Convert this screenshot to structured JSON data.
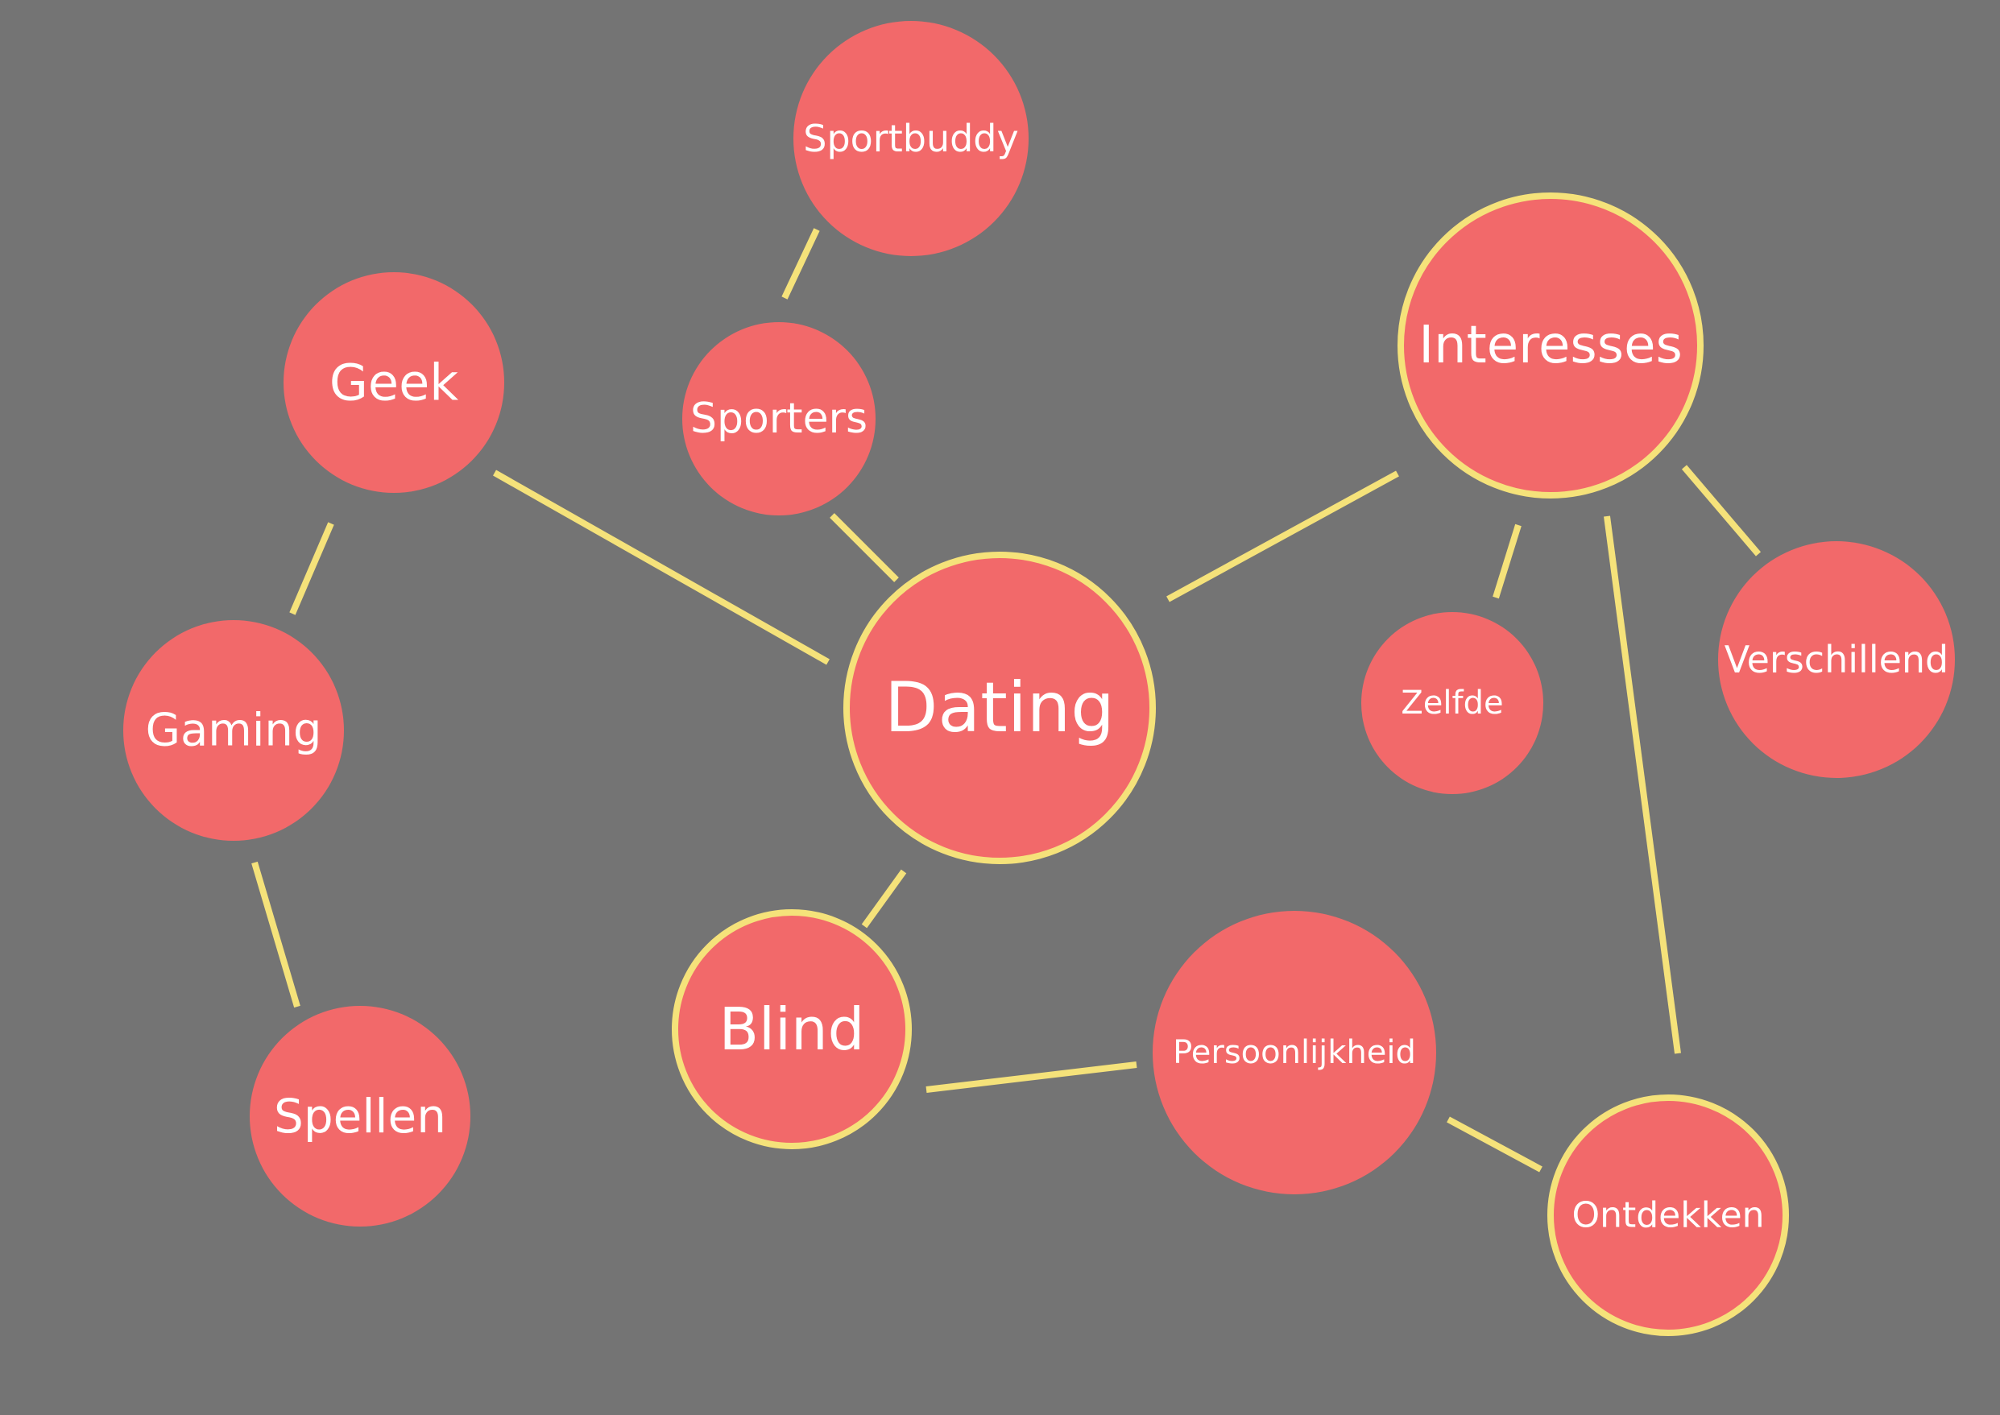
{
  "colors": {
    "background": "#747474",
    "node_fill": "#f2696a",
    "accent_line": "#f5e27a",
    "text": "#ffffff"
  },
  "nodes": {
    "sportbuddy": {
      "label": "Sportbuddy",
      "highlighted": false
    },
    "geek": {
      "label": "Geek",
      "highlighted": false
    },
    "sporters": {
      "label": "Sporters",
      "highlighted": false
    },
    "interesses": {
      "label": "Interesses",
      "highlighted": true
    },
    "gaming": {
      "label": "Gaming",
      "highlighted": false
    },
    "dating": {
      "label": "Dating",
      "highlighted": true
    },
    "zelfde": {
      "label": "Zelfde",
      "highlighted": false
    },
    "verschillend": {
      "label": "Verschillend",
      "highlighted": false
    },
    "blind": {
      "label": "Blind",
      "highlighted": true
    },
    "persoonlijkheid": {
      "label": "Persoonlijkheid",
      "highlighted": false
    },
    "spellen": {
      "label": "Spellen",
      "highlighted": false
    },
    "ontdekken": {
      "label": "Ontdekken",
      "highlighted": true
    }
  },
  "edges": [
    {
      "from": "sportbuddy",
      "to": "sporters"
    },
    {
      "from": "sporters",
      "to": "dating"
    },
    {
      "from": "geek",
      "to": "dating"
    },
    {
      "from": "geek",
      "to": "gaming"
    },
    {
      "from": "gaming",
      "to": "spellen"
    },
    {
      "from": "dating",
      "to": "interesses"
    },
    {
      "from": "dating",
      "to": "blind"
    },
    {
      "from": "interesses",
      "to": "zelfde"
    },
    {
      "from": "interesses",
      "to": "verschillend"
    },
    {
      "from": "interesses",
      "to": "ontdekken"
    },
    {
      "from": "blind",
      "to": "persoonlijkheid"
    },
    {
      "from": "persoonlijkheid",
      "to": "ontdekken"
    }
  ]
}
